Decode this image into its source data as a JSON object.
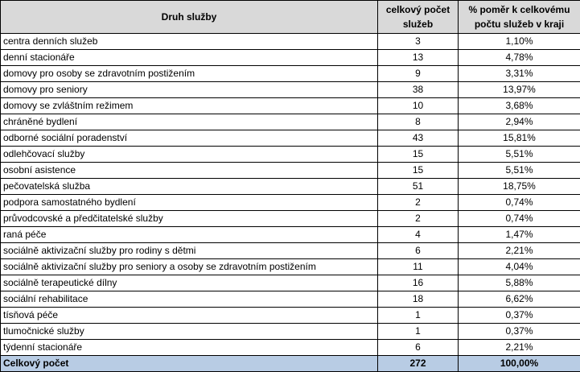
{
  "table": {
    "headers": [
      "Druh služby",
      "celkový počet služeb",
      "% poměr k celkovému počtu služeb v kraji"
    ],
    "rows": [
      [
        "centra denních služeb",
        "3",
        "1,10%"
      ],
      [
        "denní stacionáře",
        "13",
        "4,78%"
      ],
      [
        "domovy pro osoby se zdravotním postižením",
        "9",
        "3,31%"
      ],
      [
        "domovy pro seniory",
        "38",
        "13,97%"
      ],
      [
        "domovy se zvláštním režimem",
        "10",
        "3,68%"
      ],
      [
        "chráněné bydlení",
        "8",
        "2,94%"
      ],
      [
        "odborné sociální poradenství",
        "43",
        "15,81%"
      ],
      [
        "odlehčovací služby",
        "15",
        "5,51%"
      ],
      [
        "osobní asistence",
        "15",
        "5,51%"
      ],
      [
        "pečovatelská služba",
        "51",
        "18,75%"
      ],
      [
        "podpora samostatného bydlení",
        "2",
        "0,74%"
      ],
      [
        "průvodcovské a předčitatelské služby",
        "2",
        "0,74%"
      ],
      [
        "raná péče",
        "4",
        "1,47%"
      ],
      [
        "sociálně aktivizační služby pro rodiny s dětmi",
        "6",
        "2,21%"
      ],
      [
        "sociálně aktivizační služby pro seniory a osoby se zdravotním postižením",
        "11",
        "4,04%"
      ],
      [
        "sociálně terapeutické dílny",
        "16",
        "5,88%"
      ],
      [
        "sociální rehabilitace",
        "18",
        "6,62%"
      ],
      [
        "tísňová péče",
        "1",
        "0,37%"
      ],
      [
        "tlumočnické služby",
        "1",
        "0,37%"
      ],
      [
        "týdenní stacionáře",
        "6",
        "2,21%"
      ]
    ],
    "total": [
      "Celkový počet",
      "272",
      "100,00%"
    ]
  },
  "colors": {
    "header_bg": "#d9d9d9",
    "total_bg": "#b8cce4"
  }
}
